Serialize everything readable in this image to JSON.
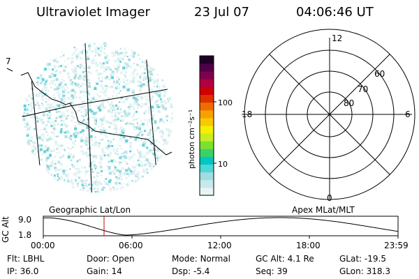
{
  "header": {
    "instrument": "Ultraviolet Imager",
    "date": "23 Jul 07",
    "time": "04:06:46 UT"
  },
  "geo_panel": {
    "caption": "Geographic Lat/Lon",
    "edge_mark": "7"
  },
  "colorbar": {
    "unit_label": "photon cm⁻²s⁻¹",
    "tick_labels": [
      "100",
      "10"
    ],
    "colors": [
      "#e8f4f4",
      "#c8e8ec",
      "#a0dde0",
      "#4fd6d6",
      "#00c8c0",
      "#3dd06a",
      "#7be030",
      "#c8ec20",
      "#f4f000",
      "#f8c800",
      "#f8a000",
      "#f06c00",
      "#e03000",
      "#d00000",
      "#b00040",
      "#800050",
      "#500048",
      "#200028"
    ]
  },
  "polar_plot": {
    "caption": "Apex MLat/MLT",
    "mlt_labels": {
      "top": "12",
      "left": "18",
      "right": "6",
      "bottom": "0"
    },
    "lat_labels": [
      "60",
      "70",
      "80"
    ]
  },
  "altitude_plot": {
    "ylabel": "GC Alt",
    "ymax_label": "9.0",
    "ymin_label": "1.8",
    "time_ticks": [
      "00:00",
      "06:00",
      "12:00",
      "18:00",
      "23:59"
    ],
    "current_time_hours": 4.11,
    "curve_color": "#000000",
    "marker_color": "#d00000"
  },
  "status": {
    "row1": [
      {
        "label": "Flt:",
        "value": "LBHL"
      },
      {
        "label": "Door:",
        "value": "Open"
      },
      {
        "label": "Mode:",
        "value": "Normal"
      },
      {
        "label": "GC Alt:",
        "value": "4.1 Re"
      },
      {
        "label": "GLat:",
        "value": "-19.5"
      }
    ],
    "row2": [
      {
        "label": "IP:",
        "value": "36.0"
      },
      {
        "label": "Gain:",
        "value": "14"
      },
      {
        "label": "Dsp:",
        "value": "-5.4"
      },
      {
        "label": "Seq:",
        "value": "39"
      },
      {
        "label": "GLon:",
        "value": "318.3"
      }
    ]
  }
}
